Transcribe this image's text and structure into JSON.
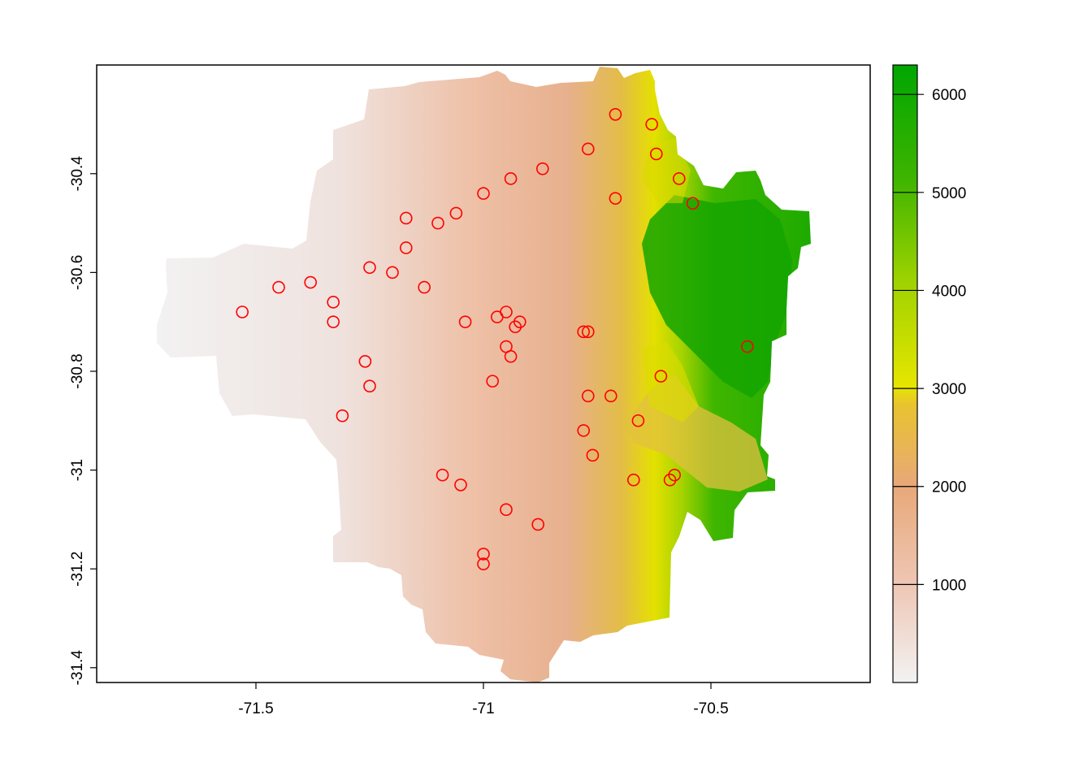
{
  "chart_data": {
    "type": "scatter",
    "title": "",
    "xlabel": "",
    "ylabel": "",
    "xlim": [
      -71.85,
      -70.15
    ],
    "ylim": [
      -31.43,
      -30.18
    ],
    "x_ticks": [
      {
        "value": -71.5,
        "label": "-71.5"
      },
      {
        "value": -71.0,
        "label": "-71"
      },
      {
        "value": -70.5,
        "label": "-70.5"
      }
    ],
    "y_ticks": [
      {
        "value": -30.4,
        "label": "-30.4"
      },
      {
        "value": -30.6,
        "label": "-30.6"
      },
      {
        "value": -30.8,
        "label": "-30.8"
      },
      {
        "value": -31.0,
        "label": "-31"
      },
      {
        "value": -31.2,
        "label": "-31.2"
      },
      {
        "value": -31.4,
        "label": "-31.4"
      }
    ],
    "raster": {
      "variable": "elevation",
      "range": [
        0,
        6300
      ],
      "colormap": [
        "#f2f2f2",
        "#eeb99f",
        "#e8c32e",
        "#e6e600",
        "#00a600"
      ],
      "legend_ticks": [
        {
          "value": 1000,
          "label": "1000"
        },
        {
          "value": 2000,
          "label": "2000"
        },
        {
          "value": 3000,
          "label": "3000"
        },
        {
          "value": 4000,
          "label": "4000"
        },
        {
          "value": 5000,
          "label": "5000"
        },
        {
          "value": 6000,
          "label": "6000"
        }
      ]
    },
    "points": {
      "marker": "open-circle",
      "color": "#ff0000",
      "values": [
        [
          -70.71,
          -30.28
        ],
        [
          -70.63,
          -30.3
        ],
        [
          -70.77,
          -30.35
        ],
        [
          -70.62,
          -30.36
        ],
        [
          -70.57,
          -30.41
        ],
        [
          -70.54,
          -30.46
        ],
        [
          -70.71,
          -30.45
        ],
        [
          -70.87,
          -30.39
        ],
        [
          -70.94,
          -30.41
        ],
        [
          -71.0,
          -30.44
        ],
        [
          -71.06,
          -30.48
        ],
        [
          -71.1,
          -30.5
        ],
        [
          -71.17,
          -30.49
        ],
        [
          -71.17,
          -30.55
        ],
        [
          -71.25,
          -30.59
        ],
        [
          -71.2,
          -30.6
        ],
        [
          -71.13,
          -30.63
        ],
        [
          -71.38,
          -30.62
        ],
        [
          -71.45,
          -30.63
        ],
        [
          -71.33,
          -30.66
        ],
        [
          -71.53,
          -30.68
        ],
        [
          -71.33,
          -30.7
        ],
        [
          -71.04,
          -30.7
        ],
        [
          -70.97,
          -30.69
        ],
        [
          -70.95,
          -30.68
        ],
        [
          -70.93,
          -30.71
        ],
        [
          -70.92,
          -30.7
        ],
        [
          -70.78,
          -30.72
        ],
        [
          -70.77,
          -30.72
        ],
        [
          -70.42,
          -30.75
        ],
        [
          -70.95,
          -30.75
        ],
        [
          -70.94,
          -30.77
        ],
        [
          -71.26,
          -30.78
        ],
        [
          -70.61,
          -30.81
        ],
        [
          -70.98,
          -30.82
        ],
        [
          -71.25,
          -30.83
        ],
        [
          -70.77,
          -30.85
        ],
        [
          -70.72,
          -30.85
        ],
        [
          -70.66,
          -30.9
        ],
        [
          -71.31,
          -30.89
        ],
        [
          -70.78,
          -30.92
        ],
        [
          -70.76,
          -30.97
        ],
        [
          -71.09,
          -31.01
        ],
        [
          -70.67,
          -31.02
        ],
        [
          -70.59,
          -31.02
        ],
        [
          -70.58,
          -31.01
        ],
        [
          -71.05,
          -31.03
        ],
        [
          -70.95,
          -31.08
        ],
        [
          -70.88,
          -31.11
        ],
        [
          -71.0,
          -31.17
        ],
        [
          -71.0,
          -31.19
        ]
      ]
    }
  }
}
